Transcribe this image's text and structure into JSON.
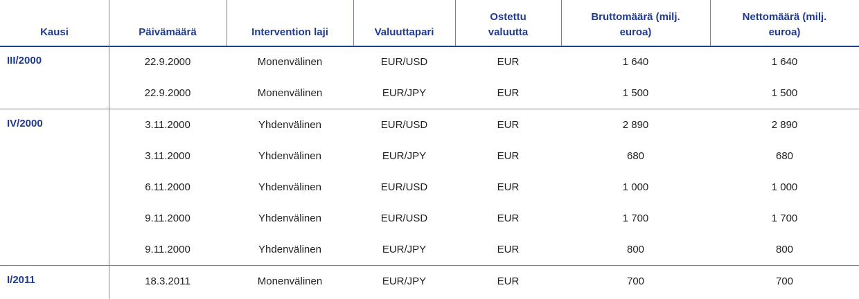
{
  "table": {
    "columns": [
      "Kausi",
      "Päivämäärä",
      "Intervention laji",
      "Valuuttapari",
      "Ostettu valuutta",
      "Bruttomäärä (milj. euroa)",
      "Nettomäärä (milj. euroa)"
    ],
    "groups": [
      {
        "period": "III/2000",
        "rows": [
          [
            "22.9.2000",
            "Monenvälinen",
            "EUR/USD",
            "EUR",
            "1 640",
            "1 640"
          ],
          [
            "22.9.2000",
            "Monenvälinen",
            "EUR/JPY",
            "EUR",
            "1 500",
            "1 500"
          ]
        ]
      },
      {
        "period": "IV/2000",
        "rows": [
          [
            "3.11.2000",
            "Yhdenvälinen",
            "EUR/USD",
            "EUR",
            "2 890",
            "2 890"
          ],
          [
            "3.11.2000",
            "Yhdenvälinen",
            "EUR/JPY",
            "EUR",
            "680",
            "680"
          ],
          [
            "6.11.2000",
            "Yhdenvälinen",
            "EUR/USD",
            "EUR",
            "1 000",
            "1 000"
          ],
          [
            "9.11.2000",
            "Yhdenvälinen",
            "EUR/USD",
            "EUR",
            "1 700",
            "1 700"
          ],
          [
            "9.11.2000",
            "Yhdenvälinen",
            "EUR/JPY",
            "EUR",
            "800",
            "800"
          ]
        ]
      },
      {
        "period": "I/2011",
        "rows": [
          [
            "18.3.2011",
            "Monenvälinen",
            "EUR/JPY",
            "EUR",
            "700",
            "700"
          ]
        ]
      }
    ]
  }
}
